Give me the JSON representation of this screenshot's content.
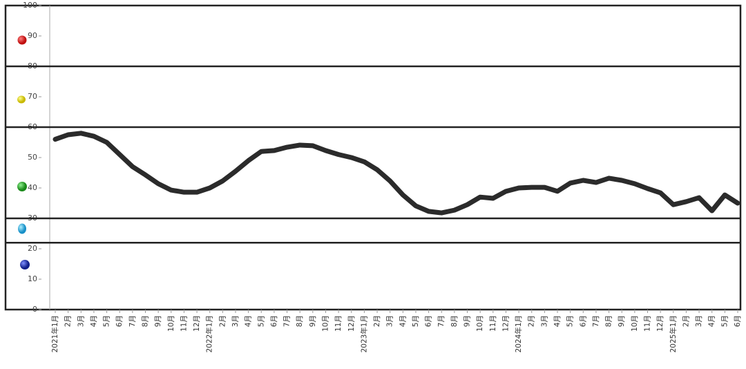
{
  "chart_data": {
    "type": "line",
    "categories": [
      "2021年1月",
      "2月",
      "3月",
      "4月",
      "5月",
      "6月",
      "7月",
      "8月",
      "9月",
      "10月",
      "11月",
      "12月",
      "2022年1月",
      "2月",
      "3月",
      "4月",
      "5月",
      "6月",
      "7月",
      "8月",
      "9月",
      "10月",
      "11月",
      "12月",
      "2023年1月",
      "2月",
      "3月",
      "4月",
      "5月",
      "6月",
      "7月",
      "8月",
      "9月",
      "10月",
      "11月",
      "12月",
      "2024年1月",
      "2月",
      "3月",
      "4月",
      "5月",
      "6月",
      "7月",
      "8月",
      "9月",
      "10月",
      "11月",
      "12月",
      "2025年1月",
      "2月",
      "3月",
      "4月",
      "5月",
      "6月"
    ],
    "series": [
      {
        "color": "#2b2b2b",
        "values": [
          56,
          57.5,
          58,
          57,
          55,
          51,
          47,
          44.3,
          41.4,
          39.3,
          38.6,
          38.6,
          40,
          42.3,
          45.5,
          49,
          52,
          52.3,
          53.4,
          54.1,
          53.9,
          52.3,
          51,
          50,
          48.6,
          46,
          42.3,
          37.7,
          34.1,
          32.3,
          31.8,
          32.7,
          34.5,
          37,
          36.6,
          38.9,
          40,
          40.2,
          40.2,
          38.9,
          41.6,
          42.5,
          41.8,
          43.2,
          42.5,
          41.4,
          39.8,
          38.4,
          34.5,
          35.5,
          36.8,
          32.5,
          37.7,
          35
        ]
      }
    ],
    "ylim": [
      0,
      100
    ],
    "yticks": [
      0,
      10,
      20,
      30,
      40,
      50,
      60,
      70,
      80,
      90,
      100
    ],
    "zone_lines": [
      80,
      60,
      30,
      22
    ]
  }
}
